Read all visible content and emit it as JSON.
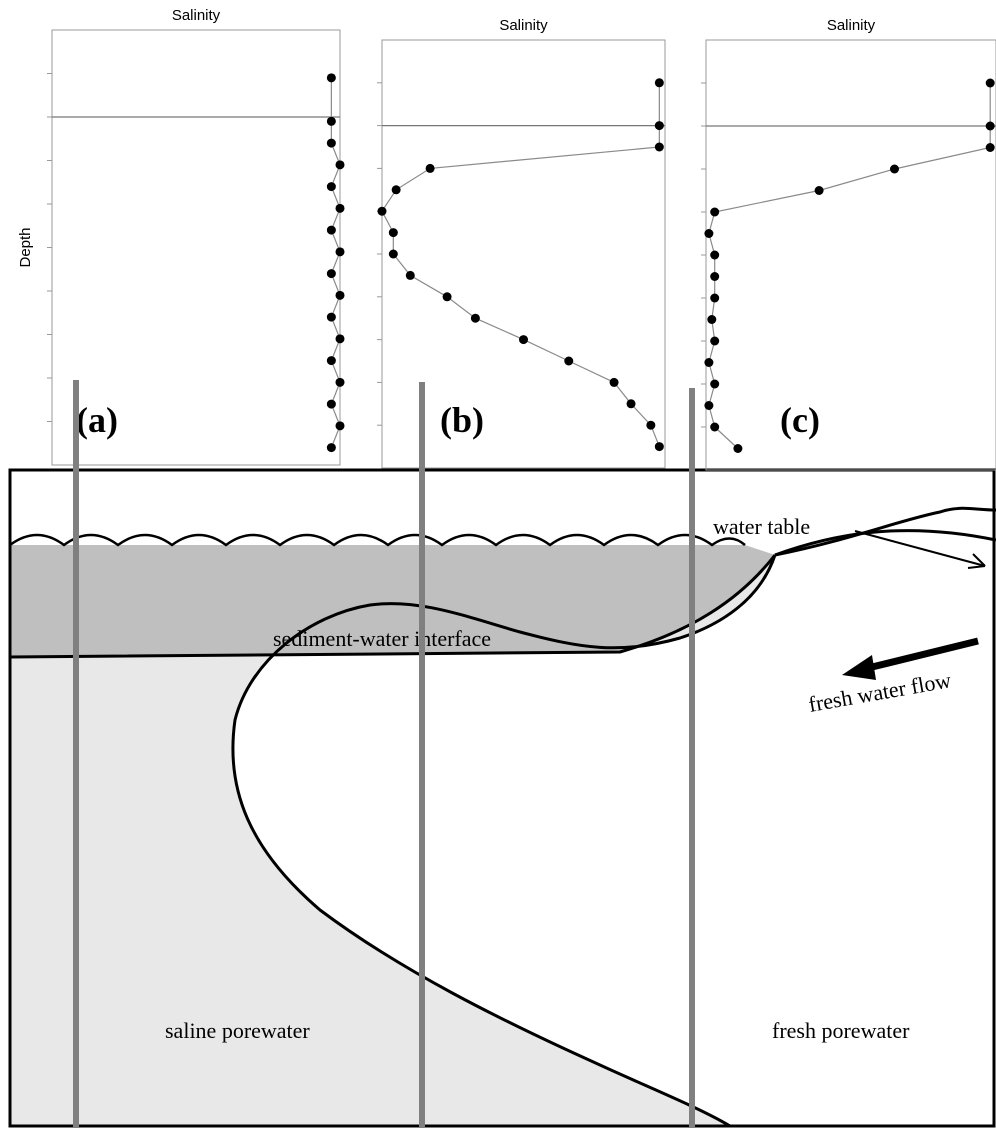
{
  "chart_data": [
    {
      "type": "line",
      "title": "Salinity",
      "y_label": "Depth",
      "panel_label": "(a)",
      "xlim": [
        0,
        100
      ],
      "ylim": [
        0,
        100
      ],
      "y_inverted": true,
      "yticks": [
        10,
        20,
        30,
        40,
        50,
        60,
        70,
        80,
        90
      ],
      "surface": 20,
      "line_color": "#8a8a8a",
      "color": "#000000",
      "x": [
        97,
        97,
        97,
        100,
        97,
        100,
        97,
        100,
        97,
        100,
        97,
        100,
        97,
        100,
        97,
        100,
        97
      ],
      "y": [
        11,
        21,
        26,
        31,
        36,
        41,
        46,
        51,
        56,
        61,
        66,
        71,
        76,
        81,
        86,
        91,
        96
      ]
    },
    {
      "type": "line",
      "title": "Salinity",
      "panel_label": "(b)",
      "xlim": [
        0,
        100
      ],
      "ylim": [
        0,
        100
      ],
      "y_inverted": true,
      "yticks": [
        10,
        20,
        30,
        40,
        50,
        60,
        70,
        80,
        90
      ],
      "surface": 20,
      "line_color": "#8a8a8a",
      "color": "#000000",
      "x": [
        98,
        98,
        98,
        17,
        5,
        0,
        4,
        4,
        10,
        23,
        33,
        50,
        66,
        82,
        88,
        95,
        98
      ],
      "y": [
        10,
        20,
        25,
        30,
        35,
        40,
        45,
        50,
        55,
        60,
        65,
        70,
        75,
        80,
        85,
        90,
        95
      ]
    },
    {
      "type": "line",
      "title": "Salinity",
      "panel_label": "(c)",
      "xlim": [
        0,
        100
      ],
      "ylim": [
        0,
        100
      ],
      "y_inverted": true,
      "yticks": [
        10,
        20,
        30,
        40,
        50,
        60,
        70,
        80,
        90
      ],
      "surface": 20,
      "line_color": "#8a8a8a",
      "color": "#000000",
      "x": [
        98,
        98,
        98,
        65,
        39,
        3,
        1,
        3,
        3,
        3,
        2,
        3,
        1,
        3,
        1,
        3,
        11
      ],
      "y": [
        10,
        20,
        25,
        30,
        35,
        40,
        45,
        50,
        55,
        60,
        65,
        70,
        75,
        80,
        85,
        90,
        95
      ]
    }
  ],
  "diagram": {
    "water_table": "water table",
    "interface": "sediment-water interface",
    "flow": "fresh water flow",
    "saline": "saline porewater",
    "fresh": "fresh porewater"
  }
}
